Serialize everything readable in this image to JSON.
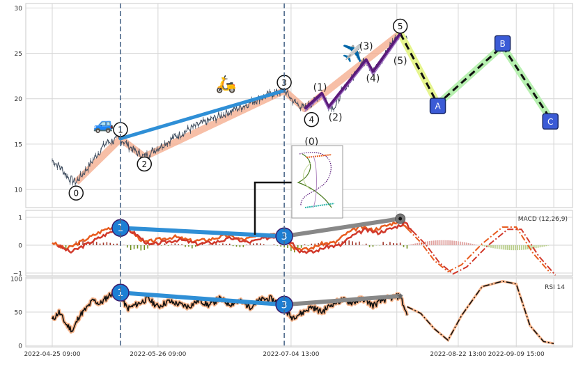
{
  "colors": {
    "grid": "#d6d6d6",
    "panel_border": "#c8c8c8",
    "price": "#3c4a5c",
    "impulse_band": "#f4a98a",
    "primary_wave": "#2f8fd6",
    "sub_wave": "#5a1a7a",
    "correction_dash": "#111111",
    "correction_band_a": "#e6f58f",
    "correction_band_b": "#b7f0b0",
    "macd_line": "#e85c1f",
    "macd_signal": "#d1392b",
    "hist_pos": "#a33a2e",
    "hist_neg": "#6f8f1e",
    "rsi_line": "#111111",
    "rsi_glow": "#f7b58c",
    "divergence": "#2f8fd6",
    "divergence_ext": "#888888",
    "box_label": "#3b5bd6",
    "circle_label": "#1c7fd4"
  },
  "chart_data": [
    {
      "type": "line",
      "panel": "price",
      "ylim": [
        8,
        30.5
      ],
      "ytick_labels": [
        "10",
        "15",
        "20",
        "25",
        "30"
      ],
      "x_domain_days": [
        0,
        148
      ],
      "price_anchors": [
        {
          "d": 0,
          "y": 13.2
        },
        {
          "d": 2,
          "y": 12.6
        },
        {
          "d": 5,
          "y": 11.2
        },
        {
          "d": 7,
          "y": 10.8
        },
        {
          "d": 10,
          "y": 12.2
        },
        {
          "d": 13,
          "y": 13.8
        },
        {
          "d": 16,
          "y": 15.2
        },
        {
          "d": 20,
          "y": 15.6
        },
        {
          "d": 23,
          "y": 14.6
        },
        {
          "d": 25,
          "y": 14.0
        },
        {
          "d": 27,
          "y": 13.6
        },
        {
          "d": 31,
          "y": 14.6
        },
        {
          "d": 36,
          "y": 15.8
        },
        {
          "d": 41,
          "y": 16.8
        },
        {
          "d": 46,
          "y": 17.6
        },
        {
          "d": 51,
          "y": 18.4
        },
        {
          "d": 56,
          "y": 19.2
        },
        {
          "d": 61,
          "y": 20.1
        },
        {
          "d": 65,
          "y": 20.6
        },
        {
          "d": 68,
          "y": 20.9
        },
        {
          "d": 71,
          "y": 19.6
        },
        {
          "d": 74,
          "y": 18.9
        },
        {
          "d": 77,
          "y": 19.8
        },
        {
          "d": 79,
          "y": 20.6
        },
        {
          "d": 81,
          "y": 19.3
        },
        {
          "d": 83,
          "y": 19.1
        },
        {
          "d": 85,
          "y": 20.9
        },
        {
          "d": 88,
          "y": 22.2
        },
        {
          "d": 90,
          "y": 23.8
        },
        {
          "d": 92,
          "y": 24.3
        },
        {
          "d": 94,
          "y": 23.0
        },
        {
          "d": 96,
          "y": 23.8
        },
        {
          "d": 98,
          "y": 25.2
        },
        {
          "d": 100,
          "y": 26.4
        },
        {
          "d": 102,
          "y": 27.2
        },
        {
          "d": 104,
          "y": 26.6
        }
      ],
      "impulse_band": [
        {
          "d": 7,
          "y": 10.8
        },
        {
          "d": 20,
          "y": 15.6
        },
        {
          "d": 27,
          "y": 13.6
        },
        {
          "d": 68,
          "y": 20.9
        },
        {
          "d": 74,
          "y": 18.9
        },
        {
          "d": 102,
          "y": 27.2
        }
      ],
      "primary_waves": [
        {
          "from": {
            "d": 20,
            "y": 15.6
          },
          "to": {
            "d": 68,
            "y": 20.9
          }
        }
      ],
      "sub_waves": [
        {
          "d": 74,
          "y": 18.9
        },
        {
          "d": 79,
          "y": 20.6
        },
        {
          "d": 81,
          "y": 19.1
        },
        {
          "d": 92,
          "y": 24.3
        },
        {
          "d": 94,
          "y": 23.0
        },
        {
          "d": 102,
          "y": 27.2
        }
      ],
      "sub_waves_upper": [
        {
          "d": 74,
          "y": 18.6
        },
        {
          "d": 79,
          "y": 20.3
        },
        {
          "d": 81,
          "y": 18.8
        },
        {
          "d": 92,
          "y": 24.0
        },
        {
          "d": 94,
          "y": 22.6
        },
        {
          "d": 102,
          "y": 26.9
        }
      ],
      "correction": [
        {
          "d": 102,
          "y": 27.2
        },
        {
          "d": 113,
          "y": 19.4
        },
        {
          "d": 132,
          "y": 25.8
        },
        {
          "d": 146,
          "y": 17.8
        }
      ],
      "circle_labels": [
        {
          "text": "0",
          "d": 7,
          "y": 9.6
        },
        {
          "text": "1",
          "d": 20,
          "y": 16.6
        },
        {
          "text": "2",
          "d": 27,
          "y": 12.8
        },
        {
          "text": "3",
          "d": 68,
          "y": 21.8
        },
        {
          "text": "4",
          "d": 76,
          "y": 17.7
        },
        {
          "text": "5",
          "d": 102,
          "y": 28.0
        }
      ],
      "paren_labels": [
        {
          "text": "(0)",
          "d": 76,
          "y": 15.3
        },
        {
          "text": "(1)",
          "d": 78.5,
          "y": 21.3
        },
        {
          "text": "(2)",
          "d": 83,
          "y": 18.0
        },
        {
          "text": "(3)",
          "d": 92,
          "y": 25.8
        },
        {
          "text": "(4)",
          "d": 94,
          "y": 22.3
        },
        {
          "text": "(5)",
          "d": 102,
          "y": 24.2
        }
      ],
      "box_labels": [
        {
          "text": "A",
          "d": 113,
          "y": 19.2
        },
        {
          "text": "B",
          "d": 132,
          "y": 26.1
        },
        {
          "text": "C",
          "d": 146,
          "y": 17.5
        }
      ],
      "icons": [
        {
          "name": "car-icon",
          "glyph": "🚙",
          "d": 15,
          "y": 16.6
        },
        {
          "name": "scooter-icon",
          "glyph": "🛵",
          "d": 51,
          "y": 21.0
        },
        {
          "name": "airplane-icon",
          "glyph": "✈️",
          "d": 88,
          "y": 24.4
        }
      ]
    },
    {
      "type": "line",
      "panel": "macd",
      "title": "MACD (12,26,9)",
      "ylim": [
        -1.1,
        1.25
      ],
      "ytick_labels": [
        "−1",
        "0",
        "1"
      ],
      "macd_anchors": [
        {
          "d": 0,
          "y": 0.1
        },
        {
          "d": 4,
          "y": -0.15
        },
        {
          "d": 8,
          "y": 0.1
        },
        {
          "d": 12,
          "y": 0.35
        },
        {
          "d": 16,
          "y": 0.6
        },
        {
          "d": 20,
          "y": 0.7
        },
        {
          "d": 23,
          "y": 0.5
        },
        {
          "d": 27,
          "y": 0.1
        },
        {
          "d": 31,
          "y": 0.2
        },
        {
          "d": 36,
          "y": 0.3
        },
        {
          "d": 41,
          "y": 0.15
        },
        {
          "d": 46,
          "y": 0.2
        },
        {
          "d": 51,
          "y": 0.35
        },
        {
          "d": 56,
          "y": 0.2
        },
        {
          "d": 61,
          "y": 0.35
        },
        {
          "d": 65,
          "y": 0.45
        },
        {
          "d": 68,
          "y": 0.3
        },
        {
          "d": 71,
          "y": -0.1
        },
        {
          "d": 75,
          "y": -0.15
        },
        {
          "d": 79,
          "y": 0.05
        },
        {
          "d": 83,
          "y": 0.1
        },
        {
          "d": 86,
          "y": 0.4
        },
        {
          "d": 90,
          "y": 0.65
        },
        {
          "d": 94,
          "y": 0.55
        },
        {
          "d": 98,
          "y": 0.7
        },
        {
          "d": 102,
          "y": 0.9
        },
        {
          "d": 104,
          "y": 0.6
        }
      ],
      "macd_forecast": [
        {
          "d": 104,
          "y": 0.6
        },
        {
          "d": 108,
          "y": 0.1
        },
        {
          "d": 112,
          "y": -0.55
        },
        {
          "d": 116,
          "y": -0.95
        },
        {
          "d": 120,
          "y": -0.7
        },
        {
          "d": 126,
          "y": 0.05
        },
        {
          "d": 132,
          "y": 0.65
        },
        {
          "d": 136,
          "y": 0.65
        },
        {
          "d": 141,
          "y": -0.3
        },
        {
          "d": 146,
          "y": -1.0
        }
      ],
      "signal_offset": -0.1,
      "divergence": [
        {
          "from": {
            "d": 20,
            "y": 0.62
          },
          "to": {
            "d": 68,
            "y": 0.32
          }
        },
        {
          "from": {
            "d": 68,
            "y": 0.32
          },
          "to": {
            "d": 102,
            "y": 0.95
          },
          "extension": true
        }
      ],
      "circle_labels": [
        {
          "text": "1",
          "d": 20,
          "y": 0.62
        },
        {
          "text": "3",
          "d": 68,
          "y": 0.32
        }
      ]
    },
    {
      "type": "line",
      "panel": "rsi",
      "title": "RSI 14",
      "ylim": [
        -2,
        102
      ],
      "ytick_labels": [
        "0",
        "50",
        "100"
      ],
      "rsi_anchors": [
        {
          "d": 0,
          "y": 38
        },
        {
          "d": 2,
          "y": 50
        },
        {
          "d": 4,
          "y": 32
        },
        {
          "d": 6,
          "y": 22
        },
        {
          "d": 8,
          "y": 45
        },
        {
          "d": 10,
          "y": 55
        },
        {
          "d": 12,
          "y": 68
        },
        {
          "d": 14,
          "y": 62
        },
        {
          "d": 16,
          "y": 72
        },
        {
          "d": 18,
          "y": 80
        },
        {
          "d": 20,
          "y": 74
        },
        {
          "d": 22,
          "y": 55
        },
        {
          "d": 25,
          "y": 62
        },
        {
          "d": 28,
          "y": 70
        },
        {
          "d": 31,
          "y": 58
        },
        {
          "d": 34,
          "y": 66
        },
        {
          "d": 37,
          "y": 62
        },
        {
          "d": 40,
          "y": 58
        },
        {
          "d": 43,
          "y": 68
        },
        {
          "d": 46,
          "y": 60
        },
        {
          "d": 49,
          "y": 70
        },
        {
          "d": 52,
          "y": 62
        },
        {
          "d": 55,
          "y": 66
        },
        {
          "d": 58,
          "y": 58
        },
        {
          "d": 61,
          "y": 68
        },
        {
          "d": 64,
          "y": 70
        },
        {
          "d": 67,
          "y": 62
        },
        {
          "d": 70,
          "y": 42
        },
        {
          "d": 73,
          "y": 48
        },
        {
          "d": 76,
          "y": 58
        },
        {
          "d": 79,
          "y": 50
        },
        {
          "d": 82,
          "y": 62
        },
        {
          "d": 85,
          "y": 68
        },
        {
          "d": 88,
          "y": 64
        },
        {
          "d": 91,
          "y": 70
        },
        {
          "d": 94,
          "y": 60
        },
        {
          "d": 97,
          "y": 68
        },
        {
          "d": 100,
          "y": 72
        },
        {
          "d": 102,
          "y": 74
        },
        {
          "d": 104,
          "y": 45
        }
      ],
      "rsi_forecast": [
        {
          "d": 104,
          "y": 58
        },
        {
          "d": 108,
          "y": 48
        },
        {
          "d": 112,
          "y": 25
        },
        {
          "d": 116,
          "y": 8
        },
        {
          "d": 120,
          "y": 45
        },
        {
          "d": 126,
          "y": 88
        },
        {
          "d": 132,
          "y": 96
        },
        {
          "d": 136,
          "y": 92
        },
        {
          "d": 140,
          "y": 30
        },
        {
          "d": 144,
          "y": 6
        },
        {
          "d": 147,
          "y": 3
        }
      ],
      "divergence": [
        {
          "from": {
            "d": 20,
            "y": 79
          },
          "to": {
            "d": 68,
            "y": 61
          }
        },
        {
          "from": {
            "d": 68,
            "y": 61
          },
          "to": {
            "d": 102,
            "y": 74
          },
          "extension": true
        }
      ],
      "circle_labels": [
        {
          "text": "1",
          "d": 20,
          "y": 79
        },
        {
          "text": "3",
          "d": 68,
          "y": 61
        }
      ]
    }
  ],
  "xaxis": {
    "tick_labels": [
      {
        "d": 0,
        "label": "2022-04-25 09:00"
      },
      {
        "d": 31,
        "label": "2022-05-26 09:00"
      },
      {
        "d": 70,
        "label": "2022-07-04 13:00"
      },
      {
        "d": 119,
        "label": "2022-08-22 13:00"
      },
      {
        "d": 136,
        "label": "2022-09-09 15:00"
      }
    ],
    "grid_days": [
      0,
      31,
      70,
      101,
      119,
      136,
      147
    ]
  },
  "vlines_days": [
    20,
    68
  ],
  "inset": {
    "name": "elliott-wave-inset-thumbnail"
  }
}
